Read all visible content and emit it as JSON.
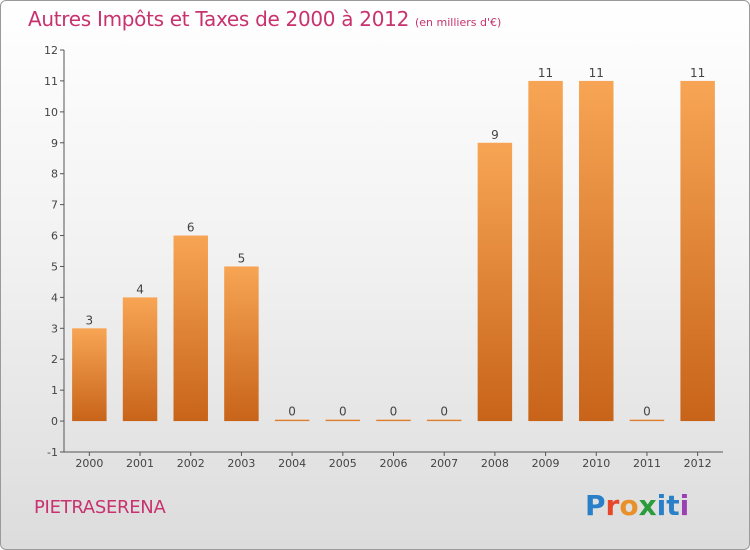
{
  "title": "Autres Impôts et Taxes de 2000 à 2012",
  "subtitle": "(en milliers d'€)",
  "commune": "PIETRASERENA",
  "logo": {
    "text": "Proxiti",
    "letters": [
      "P",
      "r",
      "o",
      "x",
      "i",
      "t",
      "i"
    ],
    "colors": [
      "#2a7fc9",
      "#e8462a",
      "#e8902a",
      "#2a9c3c",
      "#2a7fc9",
      "#2a7fc9",
      "#9b3fb5"
    ]
  },
  "colors": {
    "title": "#c8326e",
    "bar_top": "#f7a554",
    "bar_bottom": "#c8641a"
  },
  "chart_data": {
    "type": "bar",
    "categories": [
      "2000",
      "2001",
      "2002",
      "2003",
      "2004",
      "2005",
      "2006",
      "2007",
      "2008",
      "2009",
      "2010",
      "2011",
      "2012"
    ],
    "values": [
      3,
      4,
      6,
      5,
      0,
      0,
      0,
      0,
      9,
      11,
      11,
      0,
      11
    ],
    "ylim": [
      -1,
      12
    ],
    "yticks": [
      -1,
      0,
      1,
      2,
      3,
      4,
      5,
      6,
      7,
      8,
      9,
      10,
      11,
      12
    ],
    "grid": false,
    "data_labels": true
  }
}
